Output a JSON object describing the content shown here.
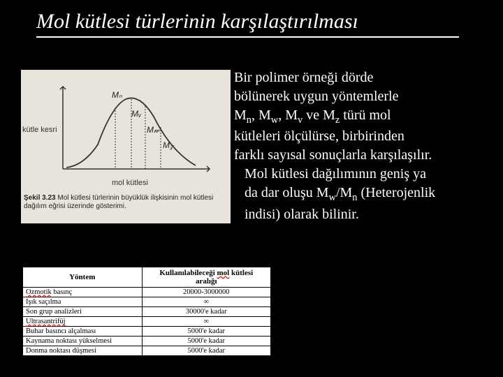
{
  "title": "Mol kütlesi türlerinin karşılaştırılması",
  "chart": {
    "ylabel": "kütle kesri",
    "xlabel": "mol kütlesi",
    "caption_bold": "Şekil 3.23",
    "caption_rest": " Mol kütlesi türlerinin büyüklük ilişkisinin mol kütlesi dağılım eğrisi üzerinde gösterimi.",
    "peak_labels": [
      "Mₙ",
      "Mᵥ",
      "M_w",
      "M_z"
    ],
    "curve_color": "#333333",
    "bg_color": "#e8e4dc"
  },
  "paragraph": {
    "line1": "Bir polimer örneği dörde",
    "line2": "bölünerek uygun yöntemlerle",
    "line3a": "M",
    "sub_n": "n",
    "line3b": ", M",
    "sub_w": "w",
    "line3c": ", M",
    "sub_v": "v",
    "line3d": " ve M",
    "sub_z": "z",
    "line3e": " türü mol",
    "line4": "kütleleri ölçülürse, birbirinden",
    "line5": "farklı sayısal sonuçlarla karşılaşılır.",
    "line6": "Mol kütlesi dağılımının geniş ya",
    "line7a": "da dar oluşu M",
    "line7b": "/M",
    "line7c": " (Heterojenlik",
    "line8": "indisi) olarak bilinir."
  },
  "table": {
    "header_method": "Yöntem",
    "header_range_l1": "Kullanılabileceği ",
    "header_range_sq": "mol",
    "header_range_l2": " kütlesi",
    "header_range_l3": "aralığı",
    "rows": [
      {
        "method_pre": "",
        "method_sq": "Ozmotik",
        "method_post": " basınç",
        "range": "20000-3000000"
      },
      {
        "method_pre": "Işık saçılma",
        "method_sq": "",
        "method_post": "",
        "range": "∞"
      },
      {
        "method_pre": "Son grup analizleri",
        "method_sq": "",
        "method_post": "",
        "range": "30000'e kadar"
      },
      {
        "method_pre": "",
        "method_sq": "Ultrasantrifüj",
        "method_post": "",
        "range": "∞"
      },
      {
        "method_pre": "Buhar basıncı alçalması",
        "method_sq": "",
        "method_post": "",
        "range": "5000'e kadar"
      },
      {
        "method_pre": "Kaynama noktası yükselmesi",
        "method_sq": "",
        "method_post": "",
        "range": "5000'e kadar"
      },
      {
        "method_pre": "Donma noktası düşmesi",
        "method_sq": "",
        "method_post": "",
        "range": "5000'e kadar"
      }
    ]
  }
}
